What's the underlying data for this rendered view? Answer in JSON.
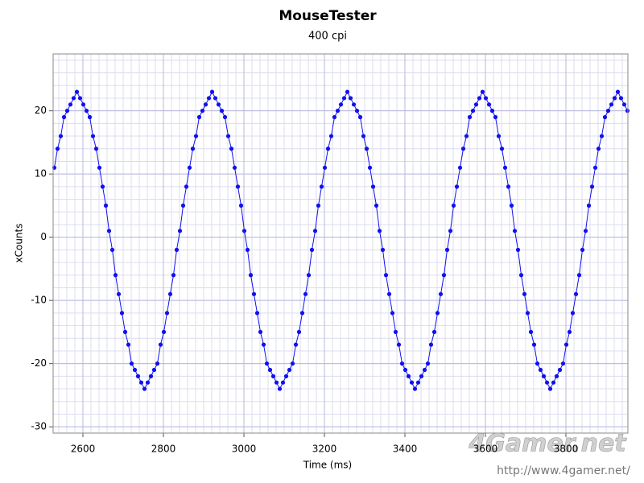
{
  "chart_data": {
    "type": "scatter",
    "title": "MouseTester",
    "subtitle": "400 cpi",
    "x_label": "Time (ms)",
    "y_label": "xCounts",
    "xlim": [
      2526,
      3954
    ],
    "ylim": [
      -31,
      29
    ],
    "xticks": [
      2600,
      2800,
      3000,
      3200,
      3400,
      3600,
      3800
    ],
    "yticks": [
      -30,
      -20,
      -10,
      0,
      10,
      20
    ],
    "grid": true,
    "x_minor_per_major": 10,
    "y_minor_per_major": 5,
    "line": true,
    "series": [
      {
        "name": "xCounts",
        "color": "#1010f0",
        "x": [
          2529,
          2537,
          2545,
          2553,
          2561,
          2569,
          2577,
          2585,
          2593,
          2601,
          2609,
          2617,
          2625,
          2633,
          2641,
          2649,
          2657,
          2665,
          2673,
          2681,
          2689,
          2697,
          2705,
          2713,
          2721,
          2729,
          2737,
          2745,
          2753,
          2761,
          2769,
          2777,
          2785,
          2793,
          2801,
          2809,
          2817,
          2825,
          2833,
          2841,
          2849,
          2857,
          2865,
          2873,
          2881,
          2889,
          2897,
          2905,
          2913,
          2921,
          2929,
          2937,
          2945,
          2953,
          2961,
          2969,
          2977,
          2985,
          2993,
          3001,
          3009,
          3017,
          3025,
          3033,
          3041,
          3049,
          3057,
          3065,
          3073,
          3081,
          3089,
          3097,
          3105,
          3113,
          3121,
          3129,
          3137,
          3145,
          3153,
          3161,
          3169,
          3177,
          3185,
          3193,
          3201,
          3209,
          3217,
          3225,
          3233,
          3241,
          3249,
          3257,
          3265,
          3273,
          3281,
          3289,
          3297,
          3305,
          3313,
          3321,
          3329,
          3337,
          3345,
          3353,
          3361,
          3369,
          3377,
          3385,
          3393,
          3401,
          3409,
          3417,
          3425,
          3433,
          3441,
          3449,
          3457,
          3465,
          3473,
          3481,
          3489,
          3497,
          3505,
          3513,
          3521,
          3529,
          3537,
          3545,
          3553,
          3561,
          3569,
          3577,
          3585,
          3593,
          3601,
          3609,
          3617,
          3625,
          3633,
          3641,
          3649,
          3657,
          3665,
          3673,
          3681,
          3689,
          3697,
          3705,
          3713,
          3721,
          3729,
          3737,
          3745,
          3753,
          3761,
          3769,
          3777,
          3785,
          3793,
          3801,
          3809,
          3817,
          3825,
          3833,
          3841,
          3849,
          3857,
          3865,
          3873,
          3881,
          3889,
          3897,
          3905,
          3913,
          3921,
          3929,
          3937,
          3945,
          3953
        ],
        "values": [
          11,
          14,
          16,
          19,
          20,
          21,
          22,
          23,
          22,
          21,
          20,
          19,
          16,
          14,
          11,
          8,
          5,
          1,
          -2,
          -6,
          -9,
          -12,
          -15,
          -17,
          -20,
          -21,
          -22,
          -23,
          -24,
          -23,
          -22,
          -21,
          -20,
          -17,
          -15,
          -12,
          -9,
          -6,
          -2,
          1,
          5,
          8,
          11,
          14,
          16,
          19,
          20,
          21,
          22,
          23,
          22,
          21,
          20,
          19,
          16,
          14,
          11,
          8,
          5,
          1,
          -2,
          -6,
          -9,
          -12,
          -15,
          -17,
          -20,
          -21,
          -22,
          -23,
          -24,
          -23,
          -22,
          -21,
          -20,
          -17,
          -15,
          -12,
          -9,
          -6,
          -2,
          1,
          5,
          8,
          11,
          14,
          16,
          19,
          20,
          21,
          22,
          23,
          22,
          21,
          20,
          19,
          16,
          14,
          11,
          8,
          5,
          1,
          -2,
          -6,
          -9,
          -12,
          -15,
          -17,
          -20,
          -21,
          -22,
          -23,
          -24,
          -23,
          -22,
          -21,
          -20,
          -17,
          -15,
          -12,
          -9,
          -6,
          -2,
          1,
          5,
          8,
          11,
          14,
          16,
          19,
          20,
          21,
          22,
          23,
          22,
          21,
          20,
          19,
          16,
          14,
          11,
          8,
          5,
          1,
          -2,
          -6,
          -9,
          -12,
          -15,
          -17,
          -20,
          -21,
          -22,
          -23,
          -24,
          -23,
          -22,
          -21,
          -20,
          -17,
          -15,
          -12,
          -9,
          -6,
          -2,
          1,
          5,
          8,
          11,
          14,
          16,
          19,
          20,
          21,
          22,
          23,
          22,
          21,
          20
        ]
      }
    ]
  },
  "watermark": {
    "logo": "4Gamer.net",
    "url": "http://www.4gamer.net/"
  }
}
